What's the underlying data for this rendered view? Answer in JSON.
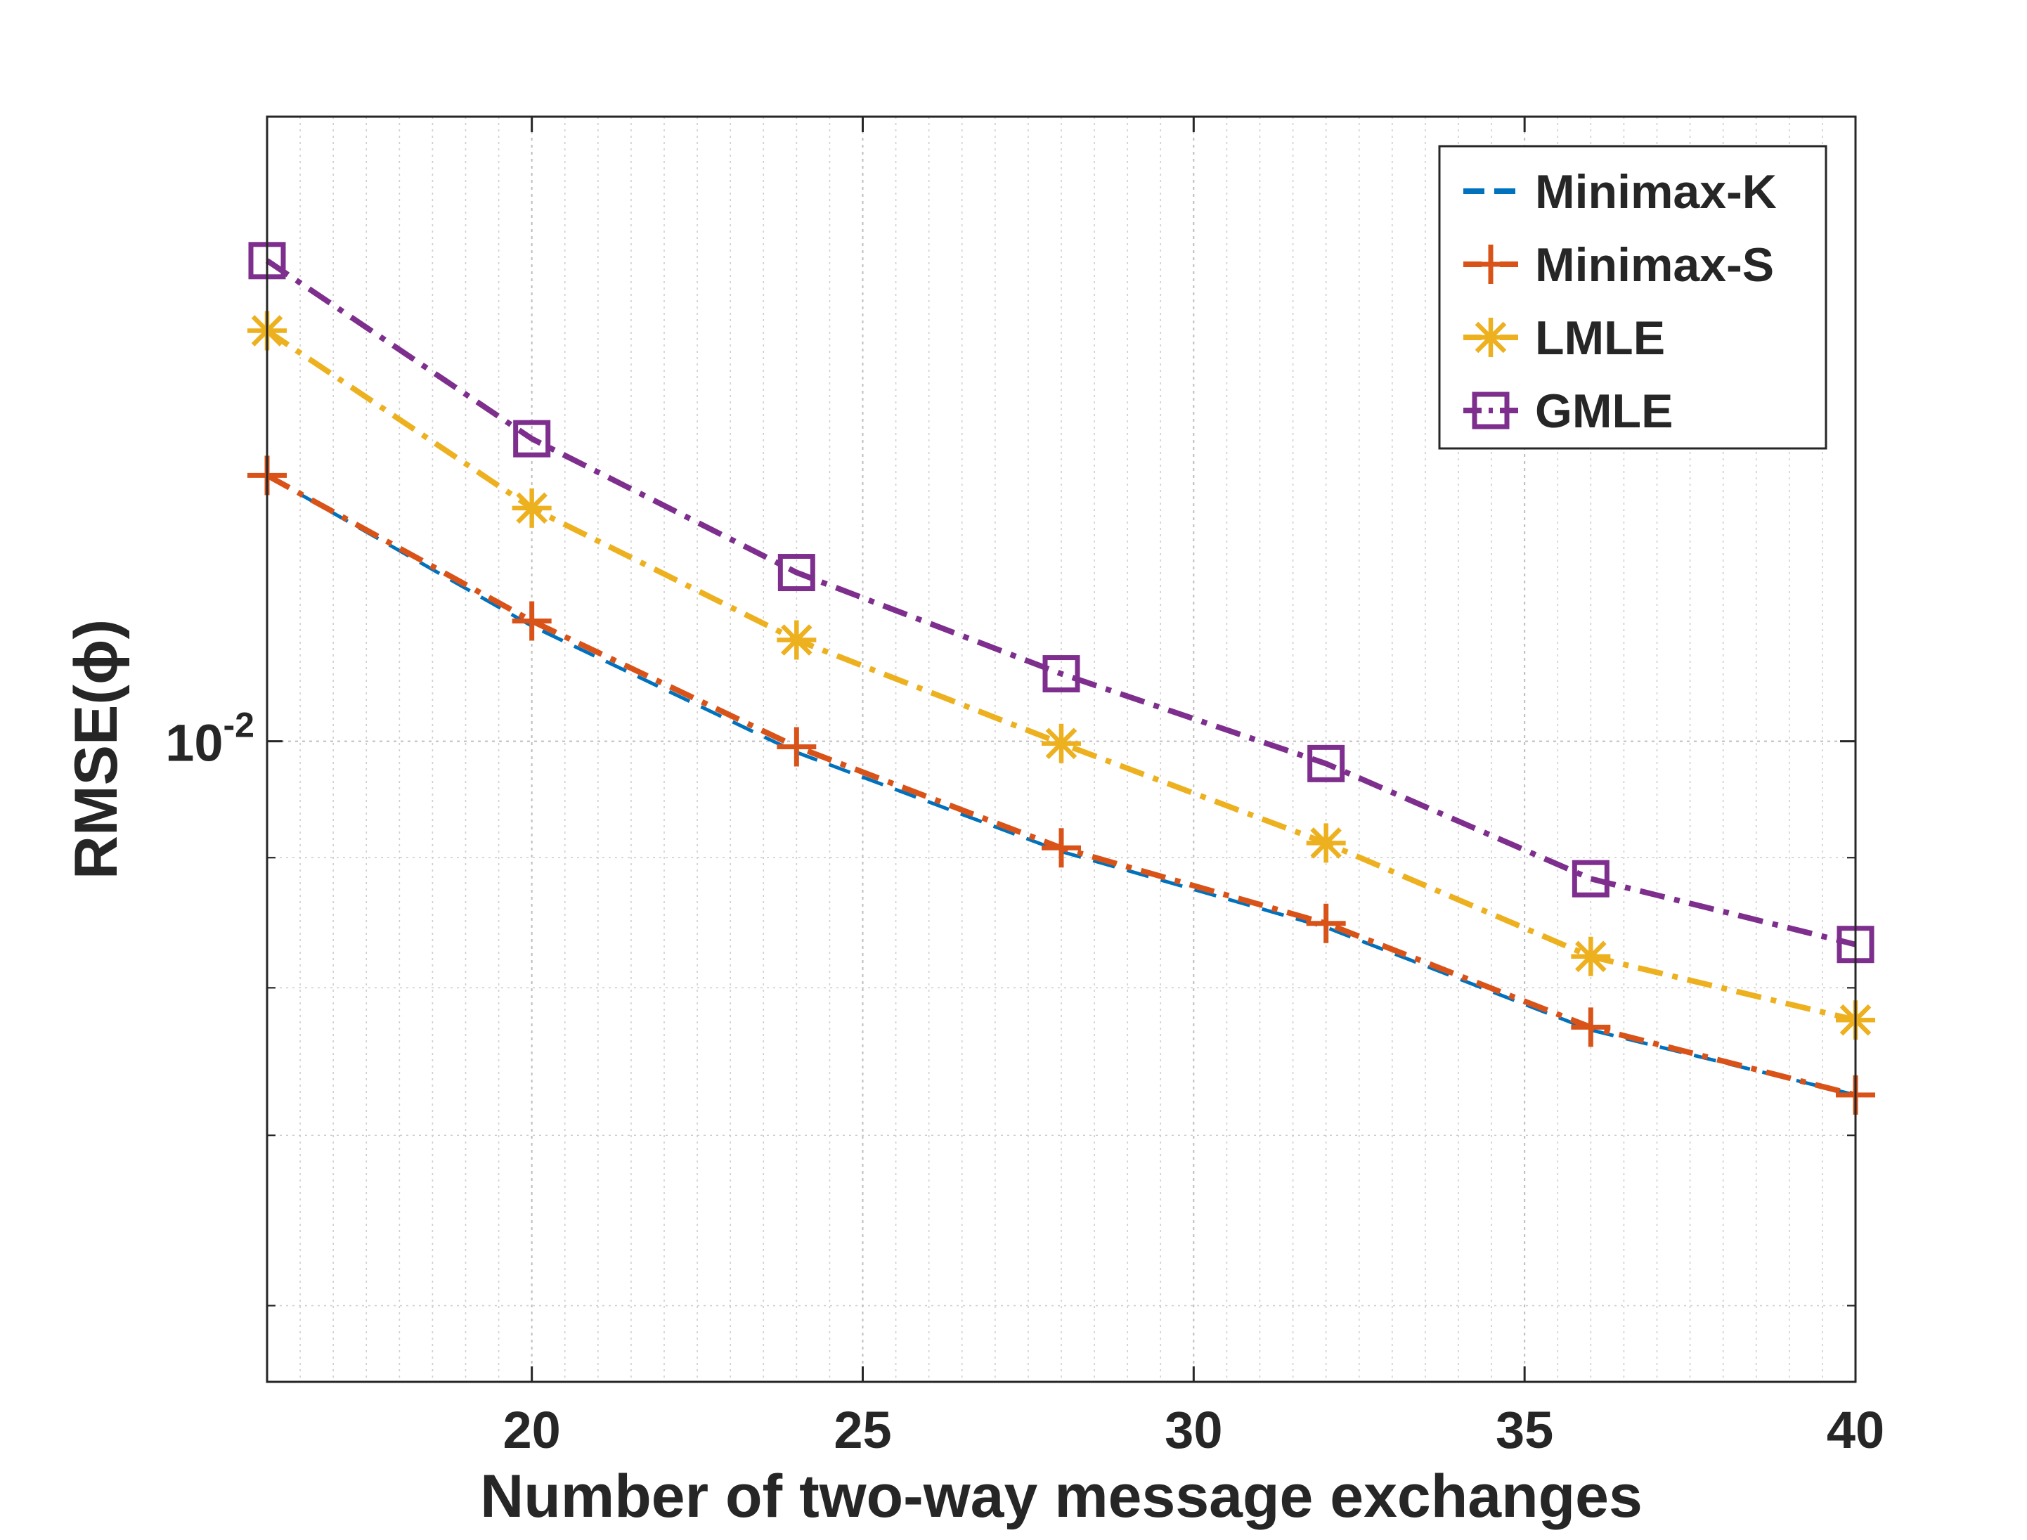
{
  "chart_data": {
    "type": "line",
    "title": "",
    "xlabel": "Number of two-way message exchanges",
    "ylabel": "RMSE(ϕ)",
    "xlim": [
      16,
      40
    ],
    "ylim": [
      0.0056,
      0.0176
    ],
    "yscale": "log",
    "grid": true,
    "minor_grid": true,
    "legend_position": "top-right",
    "x_ticks": [
      20,
      25,
      30,
      35,
      40
    ],
    "x_tick_labels": [
      "20",
      "25",
      "30",
      "35",
      "40"
    ],
    "y_ticks": [
      0.01
    ],
    "y_tick_labels": [
      {
        "base": "10",
        "exp": "-2"
      }
    ],
    "x": [
      16,
      20,
      24,
      28,
      32,
      36,
      40
    ],
    "series": [
      {
        "name": "Minimax-K",
        "color": "#0072BD",
        "line": "dashed",
        "marker": "none",
        "values": [
          0.01272,
          0.0111,
          0.0099,
          0.00905,
          0.00845,
          0.0077,
          0.00726
        ]
      },
      {
        "name": "Minimax-S",
        "color": "#D95319",
        "line": "dash-dot",
        "marker": "plus",
        "values": [
          0.01272,
          0.01115,
          0.00995,
          0.00908,
          0.00848,
          0.00772,
          0.00726
        ]
      },
      {
        "name": "LMLE",
        "color": "#EDB120",
        "line": "dash-dot",
        "marker": "asterisk",
        "values": [
          0.0145,
          0.01235,
          0.01096,
          0.00998,
          0.00912,
          0.00823,
          0.00777
        ]
      },
      {
        "name": "GMLE",
        "color": "#7E2F8E",
        "line": "dash-dot",
        "marker": "square",
        "values": [
          0.01545,
          0.01315,
          0.01165,
          0.01063,
          0.0098,
          0.00883,
          0.00832
        ]
      }
    ]
  }
}
